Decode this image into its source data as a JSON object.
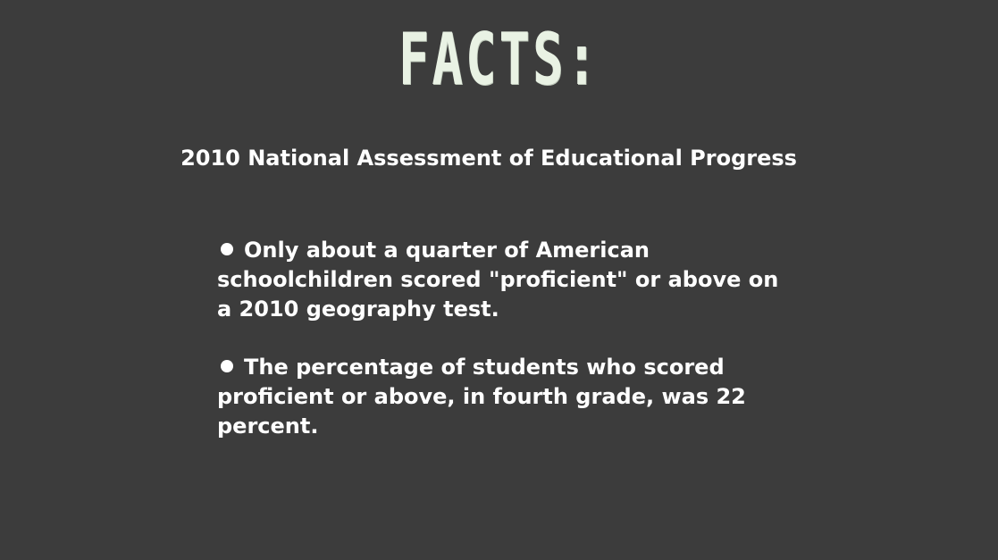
{
  "slide": {
    "title": "FACTS:",
    "subtitle": "2010 National Assessment of Educational Progress",
    "facts": [
      "Only about a quarter of American schoolchildren scored \"proficient\" or above on a 2010 geography test.",
      "The percentage of students who scored proficient or above, in fourth grade, was 22 percent."
    ]
  },
  "colors": {
    "background": "#3c3c3c",
    "title": "#e9f2e4",
    "text": "#ffffff"
  },
  "icons": {
    "bullet": "bullet-dot-icon"
  }
}
